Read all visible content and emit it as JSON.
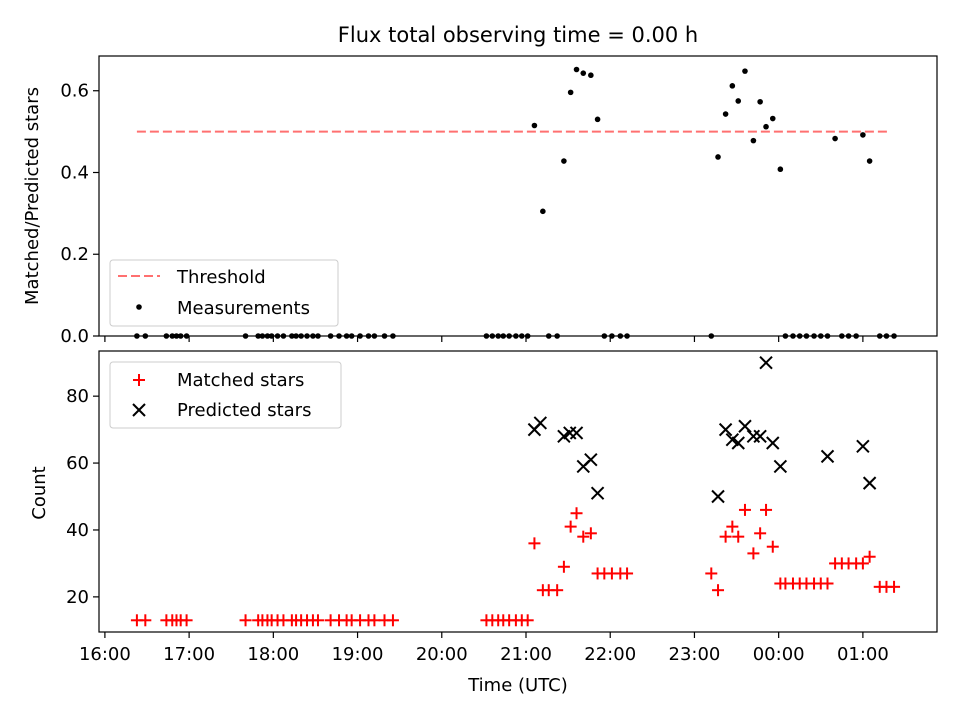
{
  "chart_data": [
    {
      "type": "scatter",
      "title": "Flux total observing time = 0.00 h",
      "ylabel": "Matched/Predicted stars",
      "xlabel": "",
      "x_unit": "hours UTC (values past 24 are after midnight)",
      "xlim": [
        15.93,
        25.88
      ],
      "ylim": [
        0,
        0.685
      ],
      "yticks": [
        0.0,
        0.2,
        0.4,
        0.6
      ],
      "ytick_labels": [
        "0.0",
        "0.2",
        "0.4",
        "0.6"
      ],
      "threshold": {
        "name": "Threshold",
        "y": 0.5,
        "x_range": [
          16.38,
          25.33
        ],
        "color": "#ff7070"
      },
      "legend": {
        "position": "lower-left",
        "entries": [
          "Threshold",
          "Measurements"
        ]
      },
      "series": [
        {
          "name": "Measurements",
          "color": "#000000",
          "x": [
            16.38,
            16.48,
            16.73,
            16.8,
            16.85,
            16.9,
            16.97,
            17.67,
            17.82,
            17.87,
            17.93,
            17.98,
            18.05,
            18.12,
            18.22,
            18.27,
            18.33,
            18.4,
            18.47,
            18.53,
            18.68,
            18.78,
            18.87,
            18.93,
            19.03,
            19.13,
            19.2,
            19.32,
            19.42,
            20.53,
            20.6,
            20.67,
            20.73,
            20.8,
            20.88,
            20.95,
            21.02,
            21.1,
            21.2,
            21.27,
            21.37,
            21.45,
            21.53,
            21.6,
            21.68,
            21.77,
            21.85,
            21.93,
            22.02,
            22.12,
            22.2,
            23.2,
            23.28,
            23.37,
            23.45,
            23.52,
            23.6,
            23.7,
            23.78,
            23.85,
            23.93,
            24.02,
            24.08,
            24.17,
            24.25,
            24.33,
            24.42,
            24.5,
            24.58,
            24.67,
            24.75,
            24.83,
            24.92,
            25.0,
            25.08,
            25.2,
            25.28,
            25.37
          ],
          "y": [
            0,
            0,
            0,
            0,
            0,
            0,
            0,
            0,
            0,
            0,
            0,
            0,
            0,
            0,
            0,
            0,
            0,
            0,
            0,
            0,
            0,
            0,
            0,
            0,
            0,
            0,
            0,
            0,
            0,
            0,
            0,
            0,
            0,
            0,
            0,
            0,
            0,
            0.515,
            0.305,
            0,
            0,
            0.428,
            0.596,
            0.652,
            0.643,
            0.638,
            0.53,
            0,
            0,
            0,
            0,
            0,
            0.438,
            0.543,
            0.612,
            0.575,
            0.648,
            0.478,
            0.573,
            0.512,
            0.532,
            0.408,
            0,
            0,
            0,
            0,
            0,
            0,
            0,
            0.483,
            0,
            0,
            0,
            0.492,
            0.428,
            0,
            0,
            0
          ]
        }
      ]
    },
    {
      "type": "scatter",
      "title": "",
      "ylabel": "Count",
      "xlabel": "Time (UTC)",
      "x_unit": "hours UTC (values past 24 are after midnight)",
      "xlim": [
        15.93,
        25.88
      ],
      "ylim": [
        9.5,
        93.5
      ],
      "yticks": [
        20,
        40,
        60,
        80
      ],
      "ytick_labels": [
        "20",
        "40",
        "60",
        "80"
      ],
      "xticks": [
        16,
        17,
        18,
        19,
        20,
        21,
        22,
        23,
        24,
        25
      ],
      "xtick_labels": [
        "16:00",
        "17:00",
        "18:00",
        "19:00",
        "20:00",
        "21:00",
        "22:00",
        "23:00",
        "00:00",
        "01:00"
      ],
      "legend": {
        "position": "upper-left",
        "entries": [
          "Matched stars",
          "Predicted stars"
        ]
      },
      "series": [
        {
          "name": "Matched stars",
          "color": "#ff0000",
          "x": [
            16.38,
            16.48,
            16.73,
            16.8,
            16.85,
            16.9,
            16.97,
            17.67,
            17.82,
            17.87,
            17.93,
            17.98,
            18.05,
            18.12,
            18.22,
            18.27,
            18.33,
            18.4,
            18.47,
            18.53,
            18.68,
            18.78,
            18.87,
            18.93,
            19.03,
            19.13,
            19.2,
            19.32,
            19.42,
            20.53,
            20.6,
            20.67,
            20.73,
            20.8,
            20.88,
            20.95,
            21.02,
            21.1,
            21.2,
            21.27,
            21.37,
            21.45,
            21.53,
            21.6,
            21.68,
            21.77,
            21.85,
            21.93,
            22.02,
            22.12,
            22.2,
            23.2,
            23.28,
            23.37,
            23.45,
            23.52,
            23.6,
            23.7,
            23.78,
            23.85,
            23.93,
            24.02,
            24.08,
            24.17,
            24.25,
            24.33,
            24.42,
            24.5,
            24.58,
            24.67,
            24.75,
            24.83,
            24.92,
            25.0,
            25.08,
            25.2,
            25.28,
            25.37
          ],
          "y": [
            13,
            13,
            13,
            13,
            13,
            13,
            13,
            13,
            13,
            13,
            13,
            13,
            13,
            13,
            13,
            13,
            13,
            13,
            13,
            13,
            13,
            13,
            13,
            13,
            13,
            13,
            13,
            13,
            13,
            13,
            13,
            13,
            13,
            13,
            13,
            13,
            13,
            36,
            22,
            22,
            22,
            29,
            41,
            45,
            38,
            39,
            27,
            27,
            27,
            27,
            27,
            27,
            22,
            38,
            41,
            38,
            46,
            33,
            39,
            46,
            35,
            24,
            24,
            24,
            24,
            24,
            24,
            24,
            24,
            30,
            30,
            30,
            30,
            30,
            32,
            23,
            23,
            23
          ]
        },
        {
          "name": "Predicted stars",
          "color": "#000000",
          "x": [
            21.1,
            21.17,
            21.45,
            21.52,
            21.6,
            21.68,
            21.77,
            21.85,
            23.28,
            23.37,
            23.45,
            23.52,
            23.6,
            23.7,
            23.78,
            23.85,
            23.93,
            24.02,
            24.58,
            25.0,
            25.08
          ],
          "y": [
            70,
            72,
            68,
            69,
            69,
            59,
            61,
            51,
            50,
            70,
            67,
            66,
            71,
            68,
            68,
            90,
            66,
            59,
            62,
            65,
            54
          ]
        }
      ]
    }
  ]
}
